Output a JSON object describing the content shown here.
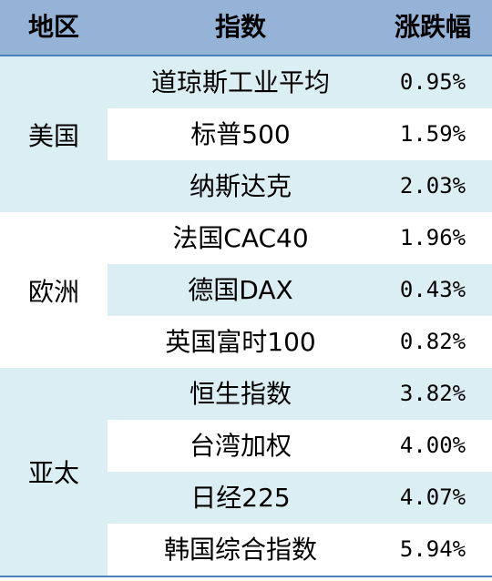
{
  "headers": {
    "region": "地区",
    "index": "指数",
    "change": "涨跌幅"
  },
  "groups": [
    {
      "region": "美国",
      "rows": [
        {
          "index": "道琼斯工业平均",
          "change": "0.95%"
        },
        {
          "index": "标普500",
          "change": "1.59%"
        },
        {
          "index": "纳斯达克",
          "change": "2.03%"
        }
      ]
    },
    {
      "region": "欧洲",
      "rows": [
        {
          "index": "法国CAC40",
          "change": "1.96%"
        },
        {
          "index": "德国DAX",
          "change": "0.43%"
        },
        {
          "index": "英国富时100",
          "change": "0.82%"
        }
      ]
    },
    {
      "region": "亚太",
      "rows": [
        {
          "index": "恒生指数",
          "change": "3.82%"
        },
        {
          "index": "台湾加权",
          "change": "4.00%"
        },
        {
          "index": "日经225",
          "change": "4.07%"
        },
        {
          "index": "韩国综合指数",
          "change": "5.94%"
        }
      ]
    }
  ],
  "colors": {
    "header_bg": "#95b3d7",
    "shade": "#dbeef3",
    "rule": "#4f81bd"
  }
}
